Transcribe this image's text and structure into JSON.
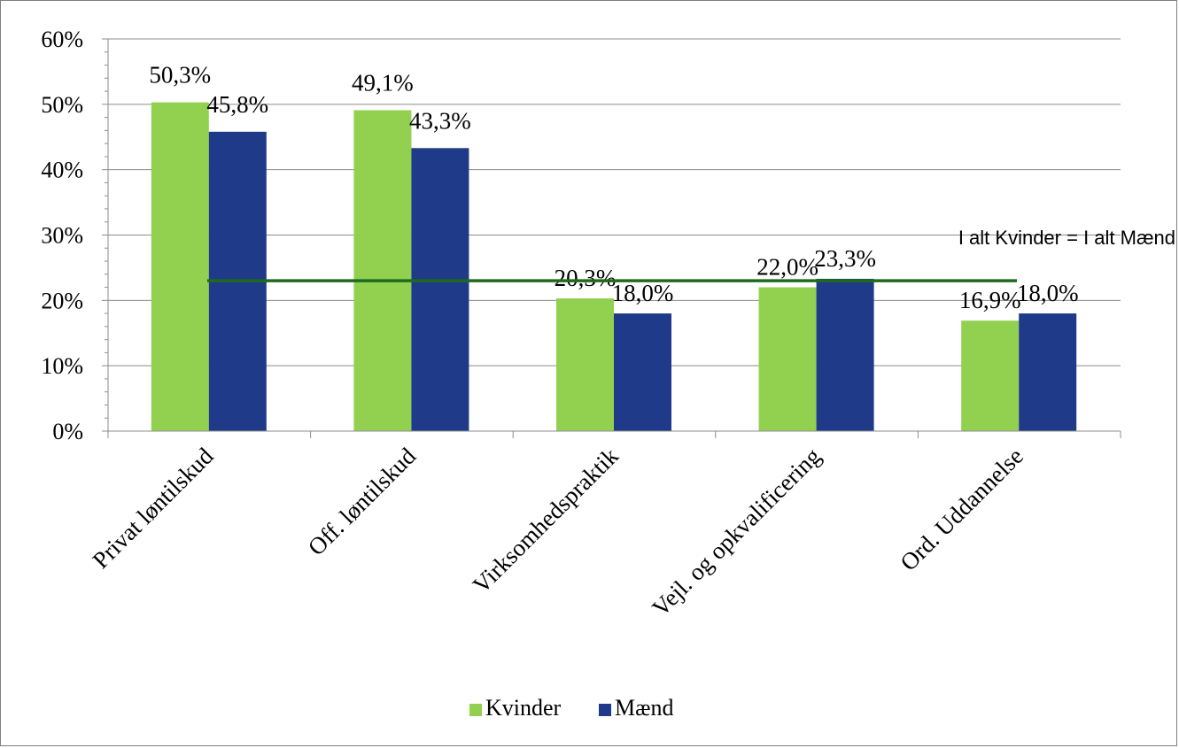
{
  "chart_data": {
    "type": "bar",
    "categories": [
      "Privat løntilskud",
      "Off. løntilskud",
      "Virksomhedspraktik",
      "Vejl. og opkvalificering",
      "Ord. Uddannelse"
    ],
    "series": [
      {
        "name": "Kvinder",
        "color": "#92d050",
        "values": [
          50.3,
          49.1,
          20.3,
          22.0,
          16.9
        ],
        "labels": [
          "50,3%",
          "49,1%",
          "20,3%",
          "22,0%",
          "16,9%"
        ]
      },
      {
        "name": "Mænd",
        "color": "#1f3a88",
        "values": [
          45.8,
          43.3,
          18.0,
          23.3,
          18.0
        ],
        "labels": [
          "45,8%",
          "43,3%",
          "18,0%",
          "23,3%",
          "18,0%"
        ]
      }
    ],
    "ylim": [
      0,
      60
    ],
    "yticks": [
      0,
      10,
      20,
      30,
      40,
      50,
      60
    ],
    "ytick_labels": [
      "0%",
      "10%",
      "20%",
      "30%",
      "40%",
      "50%",
      "60%"
    ],
    "grid": true,
    "legend_position": "bottom",
    "reference_line": {
      "value": 23.0,
      "label": "I alt Kvinder = I alt Mænd",
      "color": "#1e6b1e"
    }
  }
}
